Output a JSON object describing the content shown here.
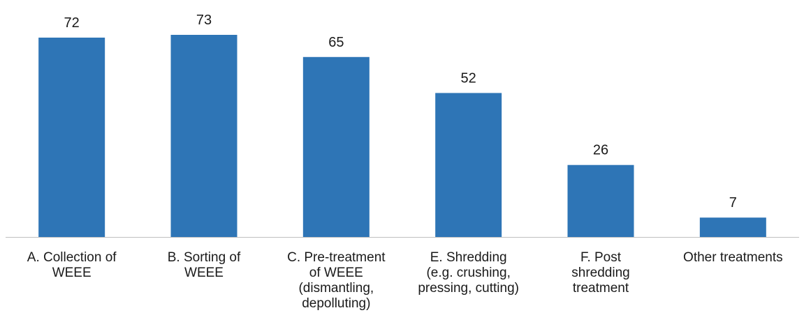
{
  "chart_data": {
    "type": "bar",
    "title": "",
    "xlabel": "",
    "ylabel": "",
    "ylim": [
      0,
      73
    ],
    "grid": false,
    "legend": "none",
    "bar_color": "#2E75B6",
    "categories": [
      [
        "A. Collection of",
        "WEEE"
      ],
      [
        "B. Sorting of",
        "WEEE"
      ],
      [
        "C. Pre-treatment",
        "of WEEE",
        "(dismantling,",
        "depolluting)"
      ],
      [
        "E. Shredding",
        "(e.g. crushing,",
        "pressing, cutting)"
      ],
      [
        "F. Post",
        "shredding",
        "treatment"
      ],
      [
        "Other treatments"
      ]
    ],
    "values": [
      72,
      73,
      65,
      52,
      26,
      7
    ]
  }
}
